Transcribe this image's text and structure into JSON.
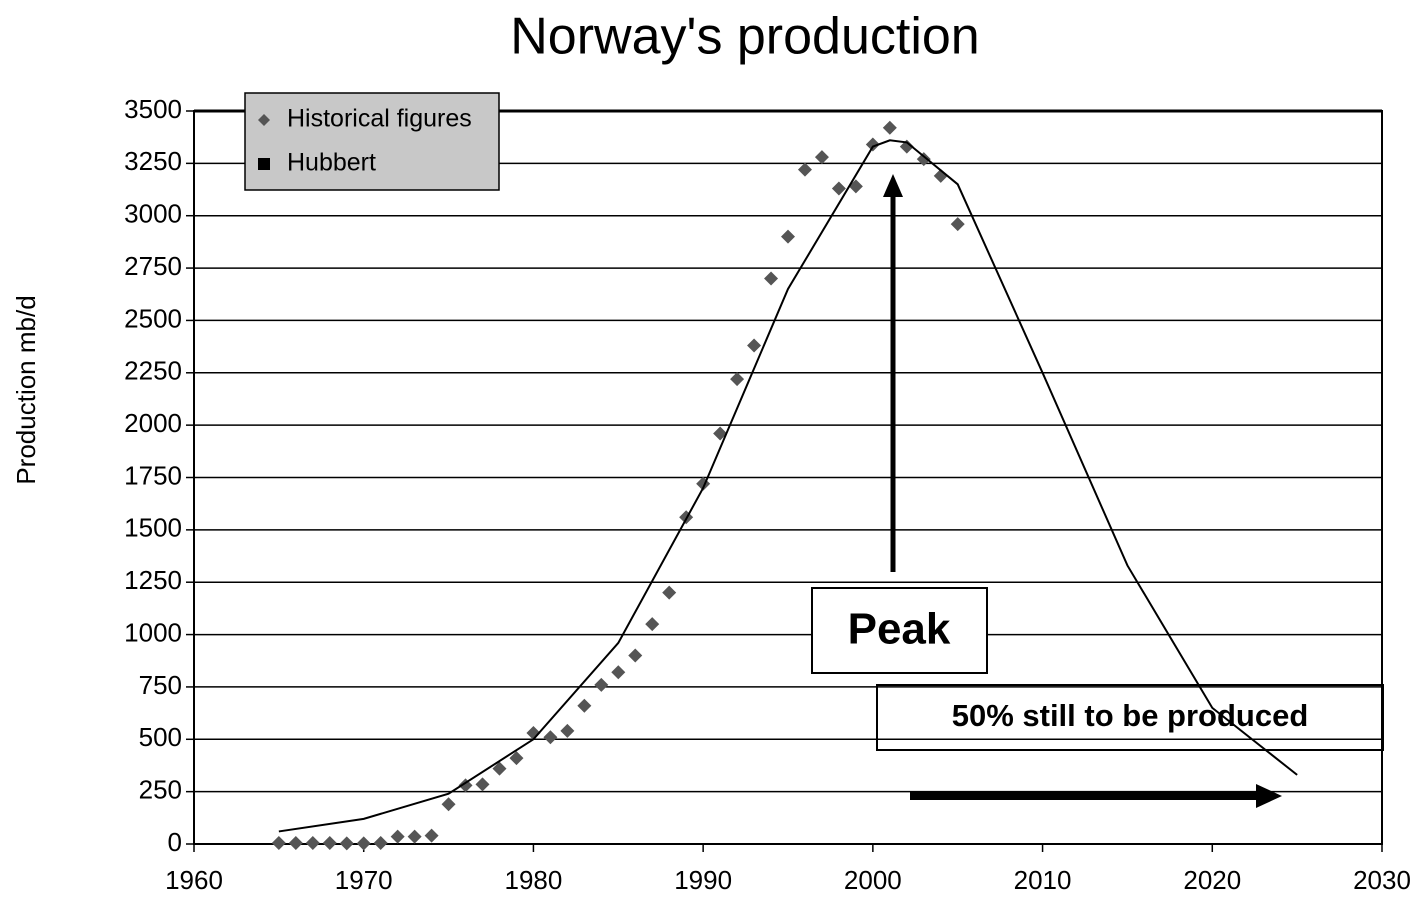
{
  "chart_data": {
    "type": "scatter",
    "title": "Norway's production",
    "ylabel": "Production mb/d",
    "xlim": [
      1960,
      2030
    ],
    "xticks": [
      1960,
      1970,
      1980,
      1990,
      2000,
      2010,
      2020,
      2030
    ],
    "ylim": [
      0,
      3500
    ],
    "yticks": [
      0,
      250,
      500,
      750,
      1000,
      1250,
      1500,
      1750,
      2000,
      2250,
      2500,
      2750,
      3000,
      3250,
      3500
    ],
    "grid": true,
    "legend": "top-left",
    "series": [
      {
        "name": "Historical figures",
        "color": "#555555",
        "marker": "diamond",
        "x": [
          1965,
          1966,
          1967,
          1968,
          1969,
          1970,
          1971,
          1972,
          1973,
          1974,
          1975,
          1976,
          1977,
          1978,
          1979,
          1980,
          1981,
          1982,
          1983,
          1984,
          1985,
          1986,
          1987,
          1988,
          1989,
          1990,
          1991,
          1992,
          1993,
          1994,
          1995,
          1996,
          1997,
          1998,
          1999,
          2000,
          2001,
          2002,
          2003,
          2004,
          2005
        ],
        "values": [
          5,
          5,
          5,
          5,
          3,
          3,
          5,
          35,
          35,
          40,
          190,
          280,
          285,
          360,
          410,
          530,
          510,
          540,
          660,
          760,
          820,
          900,
          1050,
          1200,
          1560,
          1720,
          1960,
          2220,
          2380,
          2700,
          2900,
          3220,
          3280,
          3130,
          3140,
          3340,
          3420,
          3330,
          3270,
          3190,
          2960
        ]
      },
      {
        "name": "Hubbert",
        "color": "#000000",
        "marker": "line",
        "x": [
          1965,
          1970,
          1975,
          1980,
          1985,
          1990,
          1995,
          2000,
          2001,
          2002,
          2005,
          2010,
          2015,
          2020,
          2025
        ],
        "values": [
          60,
          120,
          240,
          500,
          960,
          1700,
          2650,
          3330,
          3360,
          3350,
          3150,
          2250,
          1330,
          650,
          330
        ]
      }
    ],
    "annotations": [
      "Peak",
      "50%  still to be produced"
    ]
  }
}
